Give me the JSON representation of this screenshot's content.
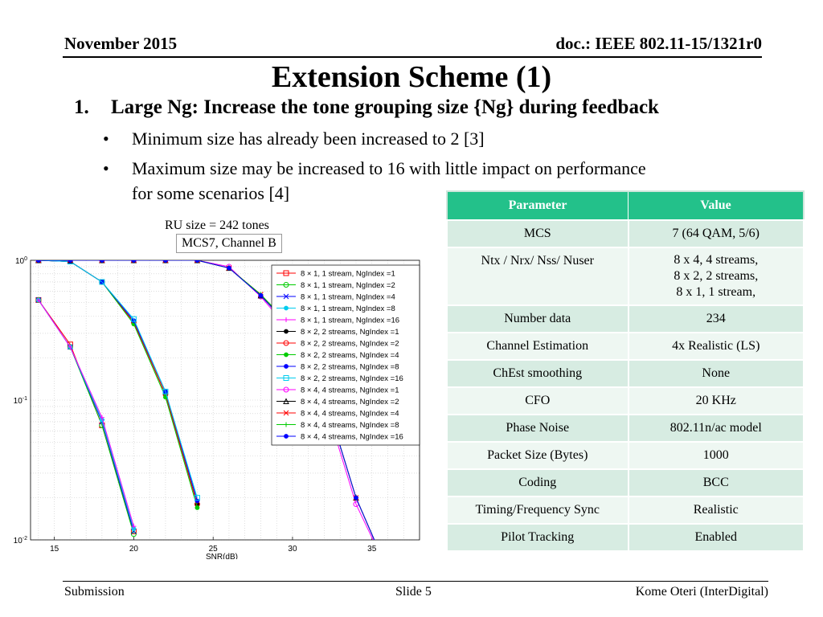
{
  "header": {
    "date": "November 2015",
    "doc": "doc.: IEEE 802.11-15/1321r0"
  },
  "title": "Extension Scheme (1)",
  "bullet1": {
    "num": "1.",
    "text": "Large Ng: Increase the tone grouping size {Ng} during feedback"
  },
  "sub_bullets": [
    "Minimum size has already been increased to 2 [3]",
    "Maximum size may be increased to 16 with little impact on performance",
    "for some scenarios [4]"
  ],
  "bullet_glyph": "•",
  "callouts": {
    "ru": "RU size = 242 tones",
    "mcs": "MCS7, Channel B"
  },
  "table": {
    "headers": [
      "Parameter",
      "Value"
    ],
    "rows": [
      [
        "MCS",
        "7 (64 QAM, 5/6)"
      ],
      [
        "Ntx / Nrx/ Nss/  Nuser",
        "8 x 4, 4 streams,"
      ],
      [
        "",
        "8 x 2, 2 streams,"
      ],
      [
        "",
        "8 x 1, 1 stream,"
      ],
      [
        "Number data",
        "234"
      ],
      [
        "Channel Estimation",
        "4x Realistic (LS)"
      ],
      [
        "ChEst smoothing",
        "None"
      ],
      [
        "CFO",
        "20 KHz"
      ],
      [
        "Phase Noise",
        "802.11n/ac model"
      ],
      [
        "Packet Size (Bytes)",
        "1000"
      ],
      [
        "Coding",
        "BCC"
      ],
      [
        "Timing/Frequency Sync",
        "Realistic"
      ],
      [
        "Pilot Tracking",
        "Enabled"
      ]
    ]
  },
  "chart_data": {
    "type": "line",
    "xlabel": "SNR(dB)",
    "ylabel": "",
    "xlim": [
      13.5,
      38
    ],
    "ylim": [
      0.01,
      1
    ],
    "yscale": "log",
    "xticks": [
      "15",
      "20",
      "25",
      "30",
      "35"
    ],
    "yticks": [
      "10^0",
      "10^-1",
      "10^-2"
    ],
    "grid": true,
    "legend_position": "top-right",
    "series": [
      {
        "name": "8 × 1, 1 stream, NgIndex =1",
        "color": "#ff0000",
        "marker": "s",
        "x": [
          14,
          16,
          18,
          20
        ],
        "y": [
          0.52,
          0.25,
          0.066,
          0.0115
        ]
      },
      {
        "name": "8 × 1, 1 stream, NgIndex =2",
        "color": "#00cc00",
        "marker": "o",
        "x": [
          14,
          16,
          18,
          20
        ],
        "y": [
          0.52,
          0.24,
          0.066,
          0.011
        ]
      },
      {
        "name": "8 × 1, 1 stream, NgIndex =4",
        "color": "#0000ff",
        "marker": "x",
        "x": [
          14,
          16,
          18,
          20
        ],
        "y": [
          0.52,
          0.24,
          0.07,
          0.0115
        ]
      },
      {
        "name": "8 × 1, 1 stream, NgIndex =8",
        "color": "#00ccee",
        "marker": "*",
        "x": [
          14,
          16,
          18,
          20
        ],
        "y": [
          0.52,
          0.24,
          0.072,
          0.012
        ]
      },
      {
        "name": "8 × 1, 1 stream, NgIndex =16",
        "color": "#ff00ff",
        "marker": "+",
        "x": [
          14,
          16,
          18,
          20
        ],
        "y": [
          0.52,
          0.24,
          0.075,
          0.0125
        ]
      },
      {
        "name": "8 × 2, 2 streams, NgIndex =1",
        "color": "#000000",
        "marker": "*",
        "x": [
          14,
          16,
          18,
          20,
          22,
          24
        ],
        "y": [
          1,
          0.98,
          0.7,
          0.36,
          0.11,
          0.018
        ]
      },
      {
        "name": "8 × 2, 2 streams, NgIndex =2",
        "color": "#ff0000",
        "marker": "o",
        "x": [
          14,
          16,
          18,
          20,
          22,
          24
        ],
        "y": [
          1,
          0.98,
          0.7,
          0.36,
          0.11,
          0.018
        ]
      },
      {
        "name": "8 × 2, 2 streams, NgIndex =4",
        "color": "#00cc00",
        "marker": "*",
        "x": [
          14,
          16,
          18,
          20,
          22,
          24
        ],
        "y": [
          1,
          0.98,
          0.7,
          0.35,
          0.105,
          0.017
        ]
      },
      {
        "name": "8 × 2, 2 streams, NgIndex =8",
        "color": "#0000ff",
        "marker": "*",
        "x": [
          14,
          16,
          18,
          20,
          22,
          24
        ],
        "y": [
          1,
          0.98,
          0.7,
          0.37,
          0.115,
          0.019
        ]
      },
      {
        "name": "8 × 2, 2 streams, NgIndex =16",
        "color": "#00ccee",
        "marker": "s",
        "x": [
          14,
          16,
          18,
          20,
          22,
          24
        ],
        "y": [
          1,
          0.98,
          0.7,
          0.38,
          0.115,
          0.02
        ]
      },
      {
        "name": "8 × 4, 4 streams, NgIndex =1",
        "color": "#ff00ff",
        "marker": "o",
        "x": [
          14,
          16,
          18,
          20,
          22,
          24,
          26,
          28,
          30,
          32,
          34,
          36
        ],
        "y": [
          1,
          1,
          1,
          1,
          1,
          1,
          0.9,
          0.55,
          0.3,
          0.1,
          0.018,
          0.0045
        ]
      },
      {
        "name": "8 × 4, 4 streams, NgIndex =2",
        "color": "#000000",
        "marker": "^",
        "x": [
          14,
          16,
          18,
          20,
          22,
          24,
          26,
          28,
          30,
          32,
          34,
          36
        ],
        "y": [
          1,
          1,
          1,
          1,
          1,
          1,
          0.88,
          0.56,
          0.32,
          0.11,
          0.02,
          0.005
        ]
      },
      {
        "name": "8 × 4, 4 streams, NgIndex =4",
        "color": "#ff0000",
        "marker": "x",
        "x": [
          14,
          16,
          18,
          20,
          22,
          24,
          26,
          28,
          30,
          32,
          34,
          36
        ],
        "y": [
          1,
          1,
          1,
          1,
          1,
          1,
          0.88,
          0.57,
          0.32,
          0.11,
          0.02,
          0.005
        ]
      },
      {
        "name": "8 × 4, 4 streams, NgIndex =8",
        "color": "#00cc00",
        "marker": "+",
        "x": [
          14,
          16,
          18,
          20,
          22,
          24,
          26,
          28,
          30,
          32,
          34,
          36
        ],
        "y": [
          1,
          1,
          1,
          1,
          1,
          1,
          0.88,
          0.57,
          0.33,
          0.11,
          0.02,
          0.005
        ]
      },
      {
        "name": "8 × 4, 4 streams, NgIndex =16",
        "color": "#0000ff",
        "marker": "*",
        "x": [
          14,
          16,
          18,
          20,
          22,
          24,
          26,
          28,
          30,
          32,
          34,
          36
        ],
        "y": [
          1,
          1,
          1,
          1,
          1,
          1,
          0.88,
          0.56,
          0.32,
          0.11,
          0.02,
          0.005
        ]
      }
    ]
  },
  "footer": {
    "left": "Submission",
    "center": "Slide 5",
    "right": "Kome Oteri (InterDigital)"
  }
}
